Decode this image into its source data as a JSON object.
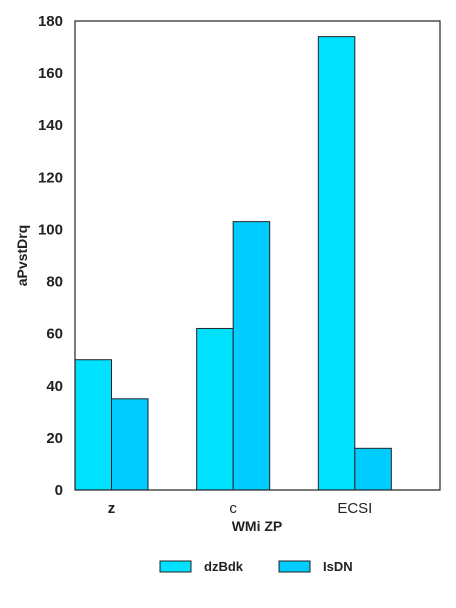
{
  "chart_data": {
    "type": "bar",
    "categories": [
      "z",
      "c",
      "ECSI"
    ],
    "series": [
      {
        "name": "dzBdk",
        "values": [
          50,
          62,
          174
        ],
        "color": "#00e0ff"
      },
      {
        "name": "IsDN",
        "values": [
          35,
          103,
          16
        ],
        "color": "#00ccff"
      }
    ],
    "xlabel": "WMi ZP",
    "ylabel": "aPvstDrq",
    "ylim": [
      0,
      180
    ],
    "yticks": [
      0,
      20,
      40,
      60,
      80,
      100,
      120,
      140,
      160,
      180
    ],
    "grid": false,
    "legend_position": "bottom-center"
  }
}
